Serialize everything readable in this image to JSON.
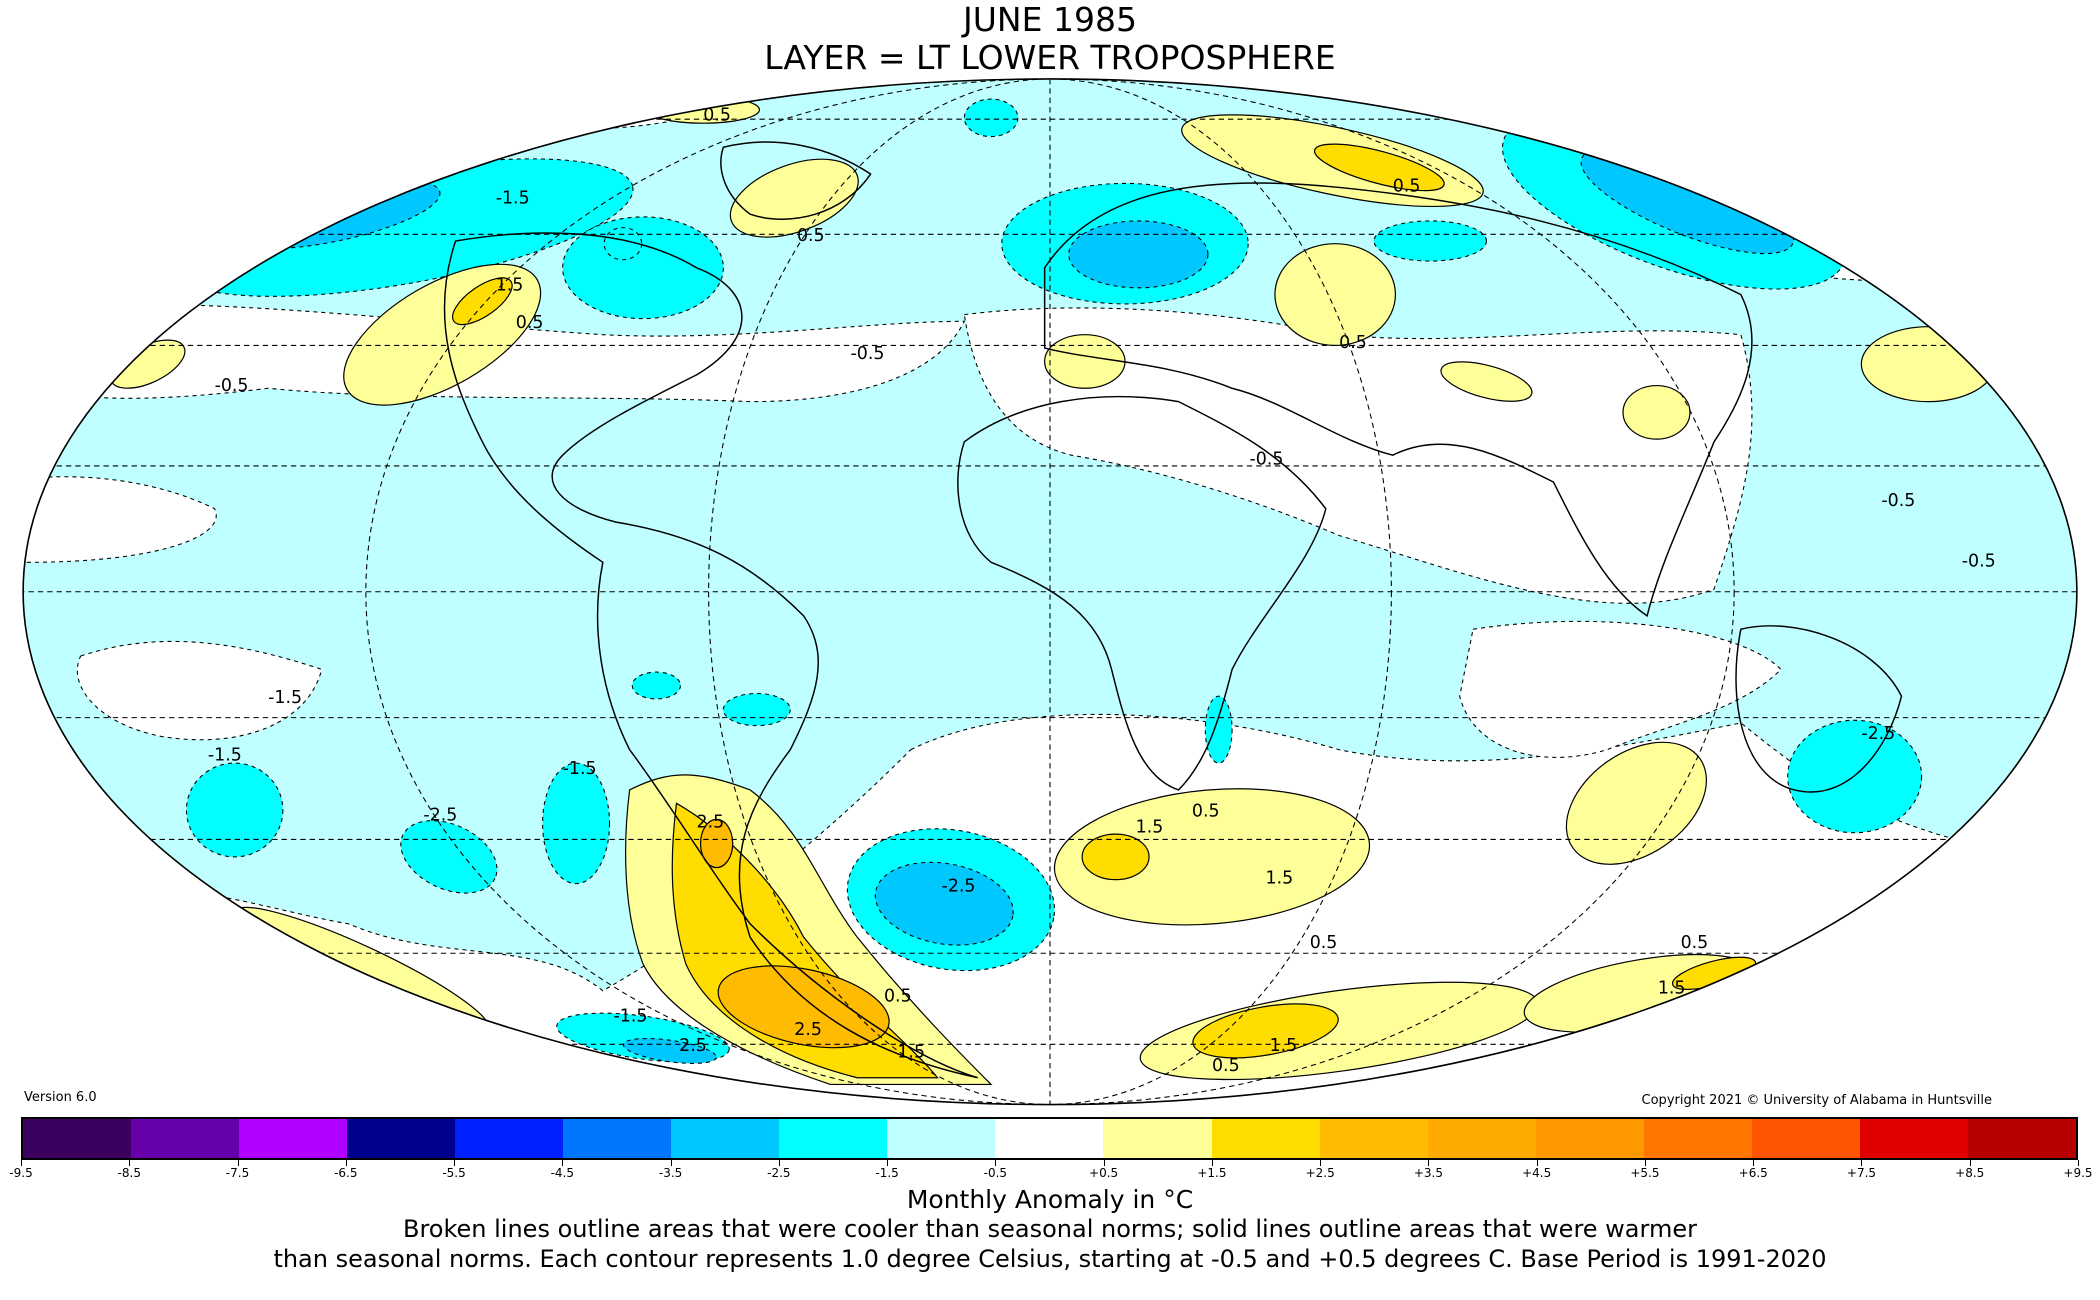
{
  "title": {
    "line1": "JUNE 1985",
    "line2": "LAYER = LT LOWER TROPOSPHERE"
  },
  "version": "Version 6.0",
  "copyright": "Copyright 2021 © University of Alabama in Huntsville",
  "colorbar": {
    "colors": [
      "#3c0060",
      "#6600aa",
      "#b000ff",
      "#00008c",
      "#0022ff",
      "#0077ff",
      "#00c8ff",
      "#00ffff",
      "#bfffff",
      "#ffffff",
      "#ffff99",
      "#ffdd00",
      "#ffbb00",
      "#ffaa00",
      "#ff9900",
      "#ff7700",
      "#ff5500",
      "#e00000",
      "#b80000"
    ],
    "ticks": [
      "-9.5",
      "-8.5",
      "-7.5",
      "-6.5",
      "-5.5",
      "-4.5",
      "-3.5",
      "-2.5",
      "-1.5",
      "-0.5",
      "+0.5",
      "+1.5",
      "+2.5",
      "+3.5",
      "+4.5",
      "+5.5",
      "+6.5",
      "+7.5",
      "+8.5",
      "+9.5"
    ]
  },
  "axis_label": "Monthly Anomaly in °C",
  "caption": {
    "line1": "Broken lines outline areas that were cooler than seasonal norms; solid lines outline areas that were warmer",
    "line2": "than seasonal norms. Each contour represents 1.0 degree Celsius, starting at -0.5 and +0.5 degrees C. Base Period is 1991-2020"
  },
  "contour_labels": [
    "0.5",
    "-1.5",
    "2.5",
    "1.5",
    "0.5",
    "0.5",
    "1.5",
    "0.5",
    "0.5",
    "0.5",
    "-0.5",
    "-0.5",
    "-0.5",
    "-1.5",
    "-1.5",
    "-1.5",
    "-2.5",
    "-2.5",
    "2.5",
    "2.5",
    "0.5",
    "1.5",
    "0.5",
    "1.5",
    "0.5",
    "-0.5",
    "-0.5",
    "1.5",
    "0.5",
    "1.5",
    "-2.5",
    "-1.5"
  ]
}
